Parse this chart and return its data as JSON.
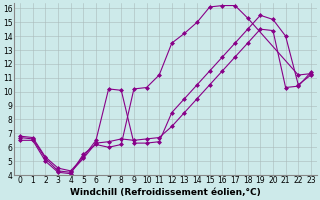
{
  "bg_color": "#cdeaea",
  "line_color": "#880088",
  "marker": "D",
  "markersize": 2.0,
  "linewidth": 0.8,
  "xlabel": "Windchill (Refroidissement éolien,°C)",
  "xlabel_fontsize": 6.5,
  "tick_fontsize": 5.5,
  "xlim": [
    -0.5,
    23.5
  ],
  "ylim": [
    4,
    16.4
  ],
  "xticks": [
    0,
    1,
    2,
    3,
    4,
    5,
    6,
    7,
    8,
    9,
    10,
    11,
    12,
    13,
    14,
    15,
    16,
    17,
    18,
    19,
    20,
    21,
    22,
    23
  ],
  "yticks": [
    4,
    5,
    6,
    7,
    8,
    9,
    10,
    11,
    12,
    13,
    14,
    15,
    16
  ],
  "series": [
    {
      "x": [
        0,
        1,
        2,
        3,
        4,
        5,
        6,
        7,
        8,
        9,
        10,
        11,
        12,
        13,
        14,
        15,
        16,
        17,
        18,
        22,
        23
      ],
      "y": [
        6.5,
        6.5,
        5.0,
        4.2,
        4.1,
        5.5,
        6.2,
        6.0,
        6.2,
        10.2,
        10.3,
        11.2,
        13.5,
        14.2,
        15.0,
        16.1,
        16.2,
        16.2,
        15.3,
        11.2,
        11.3
      ]
    },
    {
      "x": [
        0,
        1,
        2,
        3,
        4,
        5,
        6,
        7,
        8,
        9,
        10,
        11,
        12,
        13,
        14,
        15,
        16,
        17,
        18,
        19,
        20,
        21,
        22,
        23
      ],
      "y": [
        6.7,
        6.6,
        5.2,
        4.3,
        4.2,
        5.2,
        6.3,
        6.4,
        6.6,
        6.5,
        6.6,
        6.7,
        7.5,
        8.5,
        9.5,
        10.5,
        11.5,
        12.5,
        13.5,
        14.5,
        14.4,
        10.3,
        10.4,
        11.4
      ]
    },
    {
      "x": [
        0,
        1,
        2,
        3,
        4,
        5,
        6,
        7,
        8,
        9,
        10,
        11,
        12,
        13,
        14,
        15,
        16,
        17,
        18,
        19,
        20,
        21,
        22,
        23
      ],
      "y": [
        6.8,
        6.7,
        5.3,
        4.5,
        4.3,
        5.3,
        6.5,
        10.2,
        10.1,
        6.3,
        6.3,
        6.4,
        8.5,
        9.5,
        10.5,
        11.5,
        12.5,
        13.5,
        14.5,
        15.5,
        15.2,
        14.0,
        10.5,
        11.2
      ]
    }
  ]
}
